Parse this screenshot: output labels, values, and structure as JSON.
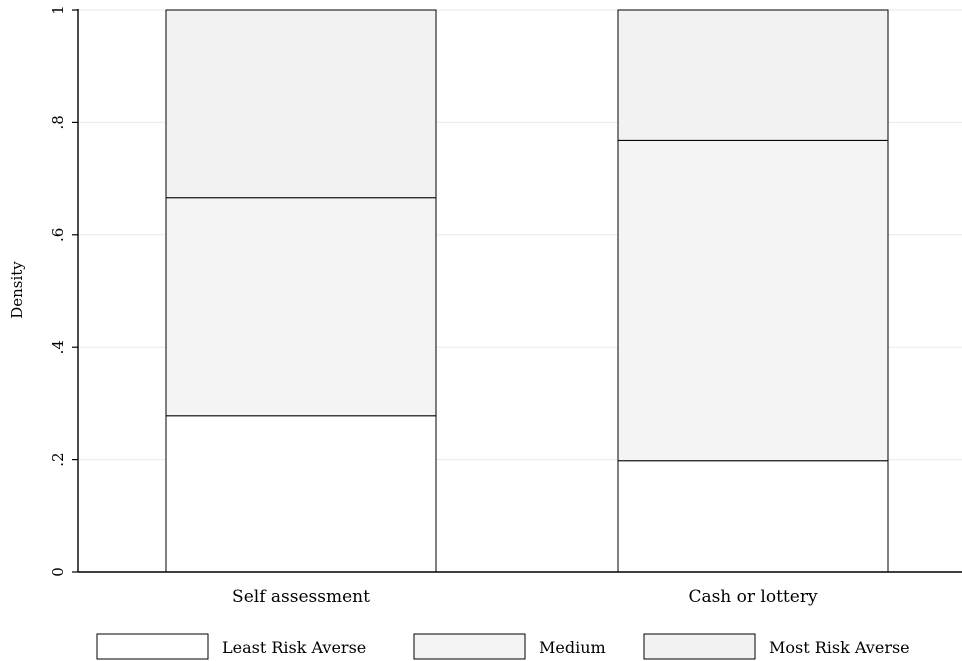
{
  "chart_data": {
    "type": "bar",
    "stacked": true,
    "categories": [
      "Self assessment",
      "Cash or lottery"
    ],
    "series": [
      {
        "name": "Least Risk Averse",
        "values": [
          0.278,
          0.198
        ],
        "color": "#ffffff"
      },
      {
        "name": "Medium",
        "values": [
          0.388,
          0.57
        ],
        "color": "#f4f4f4"
      },
      {
        "name": "Most Risk Averse",
        "values": [
          0.334,
          0.232
        ],
        "color": "#f2f2f2"
      }
    ],
    "ylabel": "Density",
    "xlabel": "",
    "ylim": [
      0,
      1
    ],
    "yticks": [
      0,
      0.2,
      0.4,
      0.6,
      0.8,
      1
    ],
    "ytick_labels": [
      "0",
      ".2",
      ".4",
      ".6",
      ".8",
      "1"
    ],
    "grid": true,
    "legend": {
      "position": "bottom",
      "columns": 3
    }
  }
}
